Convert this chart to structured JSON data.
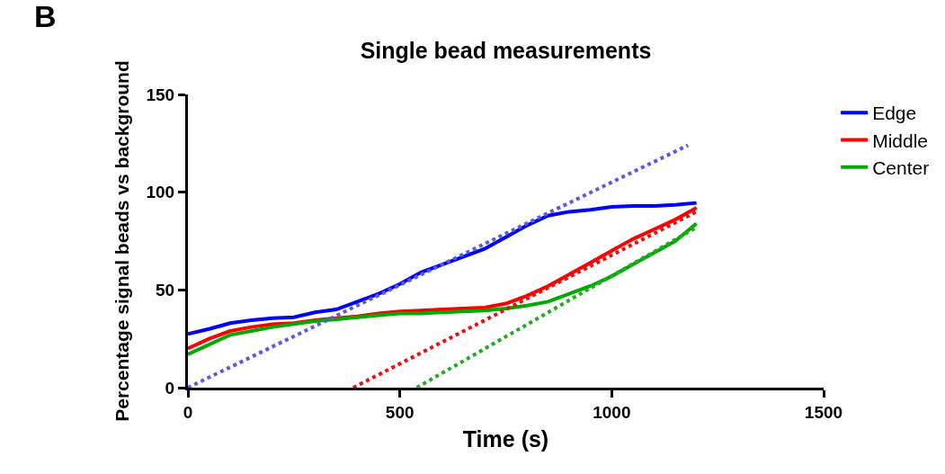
{
  "chart_data": {
    "type": "line",
    "title": "Single bead measurements",
    "xlabel": "Time (s)",
    "ylabel": "Percentage signal beads vs background",
    "annotations": [
      "B"
    ],
    "xlim": [
      0,
      1500
    ],
    "xticks": [
      0,
      500,
      1000,
      1500
    ],
    "ylim": [
      0,
      150
    ],
    "yticks": [
      0,
      50,
      100,
      150
    ],
    "grid": false,
    "legend": "top right",
    "marker": "none",
    "series": [
      {
        "name": "Edge",
        "color": "#0000ff",
        "line_style": "solid",
        "x": [
          0,
          50,
          100,
          150,
          200,
          250,
          300,
          350,
          400,
          450,
          500,
          550,
          600,
          650,
          700,
          750,
          800,
          850,
          900,
          950,
          1000,
          1050,
          1100,
          1150,
          1200
        ],
        "values": [
          27.5,
          30,
          33,
          34.5,
          35.5,
          36,
          38.5,
          40,
          44,
          48,
          53,
          59,
          63,
          67,
          71,
          77,
          83,
          88,
          90,
          91,
          92.5,
          93,
          93,
          93.5,
          94.5
        ]
      },
      {
        "name": "Middle",
        "color": "#ff0000",
        "line_style": "solid",
        "x": [
          0,
          50,
          100,
          150,
          200,
          250,
          300,
          350,
          400,
          450,
          500,
          550,
          600,
          650,
          700,
          750,
          800,
          850,
          900,
          950,
          1000,
          1050,
          1100,
          1150,
          1200
        ],
        "values": [
          20,
          25,
          29,
          31,
          32.5,
          33,
          34.5,
          35.5,
          36.5,
          38,
          39,
          39.5,
          40,
          40.5,
          41,
          43,
          47,
          52,
          58,
          64,
          70,
          76,
          81,
          86,
          92
        ]
      },
      {
        "name": "Center",
        "color": "#00aa00",
        "line_style": "solid",
        "x": [
          0,
          50,
          100,
          150,
          200,
          250,
          300,
          350,
          400,
          450,
          500,
          550,
          600,
          650,
          700,
          750,
          800,
          850,
          900,
          950,
          1000,
          1050,
          1100,
          1150,
          1200
        ],
        "values": [
          17,
          22,
          27,
          29,
          31,
          32.5,
          34,
          35,
          36,
          37,
          38,
          38,
          38.5,
          39,
          39.5,
          40.5,
          42,
          44,
          48,
          52,
          57,
          63,
          69,
          75,
          84
        ]
      },
      {
        "color": "#5a5ae0",
        "line_style": "dotted",
        "x": [
          0,
          1180
        ],
        "values": [
          0,
          124
        ]
      },
      {
        "color": "#e81010",
        "line_style": "dotted",
        "x": [
          390,
          1200
        ],
        "values": [
          0,
          90
        ]
      },
      {
        "color": "#22aa22",
        "line_style": "dotted",
        "x": [
          540,
          1200
        ],
        "values": [
          0,
          82
        ]
      }
    ]
  }
}
